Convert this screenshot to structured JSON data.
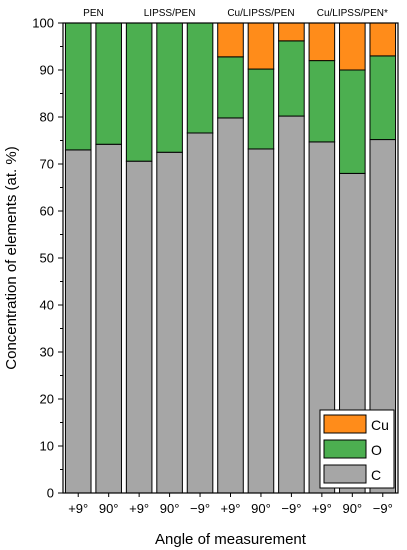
{
  "chart_data": {
    "type": "bar",
    "stacked": true,
    "xlabel": "Angle of measurement",
    "ylabel": "Concentration of elements (at. %)",
    "ylim": [
      0,
      100
    ],
    "yticks": [
      0,
      10,
      20,
      30,
      40,
      50,
      60,
      70,
      80,
      90,
      100
    ],
    "categories": [
      "+9°",
      "90°",
      "+9°",
      "90°",
      "−9°",
      "+9°",
      "90°",
      "−9°",
      "+9°",
      "90°",
      "−9°"
    ],
    "groups": [
      {
        "label": "PEN",
        "start": 0,
        "end": 1
      },
      {
        "label": "LIPSS/PEN",
        "start": 2,
        "end": 4
      },
      {
        "label": "Cu/LIPSS/PEN",
        "start": 5,
        "end": 7
      },
      {
        "label": "Cu/LIPSS/PEN*",
        "start": 8,
        "end": 10
      }
    ],
    "series": [
      {
        "name": "C",
        "color": "#a6a6a6",
        "values": [
          73.0,
          74.2,
          70.6,
          72.5,
          76.6,
          79.8,
          73.2,
          80.2,
          74.7,
          68.0,
          75.2
        ]
      },
      {
        "name": "O",
        "color": "#4caf50",
        "values": [
          27.0,
          25.8,
          29.4,
          27.5,
          23.4,
          13.0,
          17.0,
          16.0,
          17.3,
          22.0,
          17.8
        ]
      },
      {
        "name": "Cu",
        "color": "#ff8c1a",
        "values": [
          0,
          0,
          0,
          0,
          0,
          7.2,
          9.8,
          3.8,
          8.0,
          10.0,
          7.0
        ]
      }
    ],
    "legend": {
      "position": "bottom-right",
      "order": [
        "Cu",
        "O",
        "C"
      ]
    }
  }
}
